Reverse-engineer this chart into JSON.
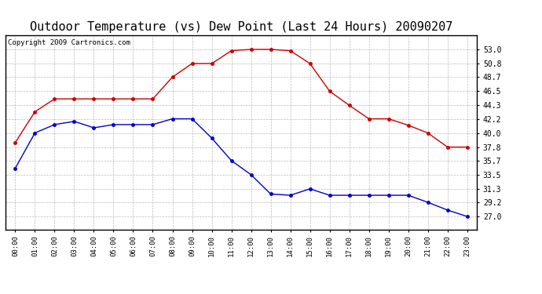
{
  "title": "Outdoor Temperature (vs) Dew Point (Last 24 Hours) 20090207",
  "copyright": "Copyright 2009 Cartronics.com",
  "x_labels": [
    "00:00",
    "01:00",
    "02:00",
    "03:00",
    "04:00",
    "05:00",
    "06:00",
    "07:00",
    "08:00",
    "09:00",
    "10:00",
    "11:00",
    "12:00",
    "13:00",
    "14:00",
    "15:00",
    "16:00",
    "17:00",
    "18:00",
    "19:00",
    "20:00",
    "21:00",
    "22:00",
    "23:00"
  ],
  "temp_red": [
    38.5,
    43.3,
    45.3,
    45.3,
    45.3,
    45.3,
    45.3,
    45.3,
    48.7,
    50.8,
    50.8,
    52.8,
    53.0,
    53.0,
    52.8,
    50.8,
    46.5,
    44.3,
    42.2,
    42.2,
    41.2,
    40.0,
    37.8,
    37.8
  ],
  "dew_blue": [
    34.5,
    40.0,
    41.3,
    41.8,
    40.8,
    41.3,
    41.3,
    41.3,
    42.2,
    42.2,
    39.2,
    35.7,
    33.5,
    30.5,
    30.3,
    31.3,
    30.3,
    30.3,
    30.3,
    30.3,
    30.3,
    29.2,
    28.0,
    27.0
  ],
  "ylim": [
    25.0,
    55.2
  ],
  "yticks": [
    27.0,
    29.2,
    31.3,
    33.5,
    35.7,
    37.8,
    40.0,
    42.2,
    44.3,
    46.5,
    48.7,
    50.8,
    53.0
  ],
  "red_color": "#cc0000",
  "blue_color": "#0000cc",
  "bg_color": "#ffffff",
  "grid_color": "#aaaaaa",
  "title_fontsize": 11,
  "copyright_fontsize": 6.5
}
